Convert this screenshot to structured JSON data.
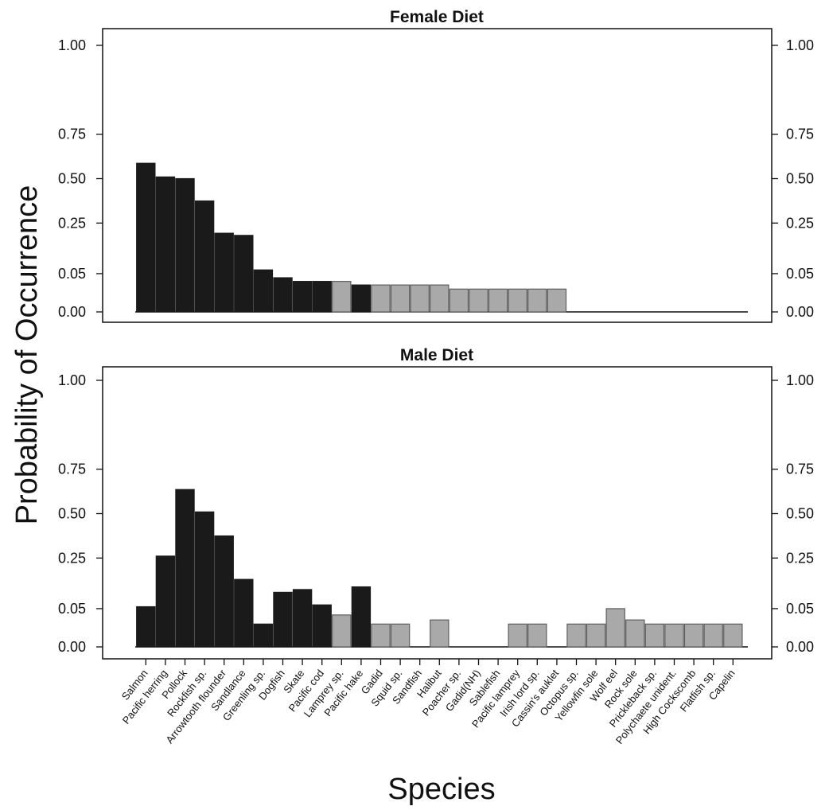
{
  "chart_data": [
    {
      "type": "bar",
      "title": "Female Diet",
      "ylabel": "Probability of Occurrence",
      "xlabel": "Species",
      "yticks": [
        "0.00",
        "0.05",
        "0.25",
        "0.50",
        "0.75",
        "1.00"
      ],
      "colors": {
        "dark": "#1a1a1a",
        "light": "#a9a9a9",
        "edge": "#5e5e5e"
      },
      "categories": [
        "Salmon",
        "Pacific herring",
        "Pollock",
        "Rockfish sp.",
        "Arrowtooth flounder",
        "Sandlance",
        "Greenling sp.",
        "Dogfish",
        "Skate",
        "Pacific cod",
        "Lamprey sp.",
        "Pacific hake",
        "Gadid",
        "Squid sp.",
        "Sandfish",
        "Halibut",
        "Poacher sp.",
        "Gadid(NH)",
        "Sablefish",
        "Pacific lamprey",
        "Irish lord sp.",
        "Cassin's auklet",
        "Octopus sp.",
        "Yellowfin sole",
        "Wolf eel",
        "Rock sole",
        "Prickleback sp.",
        "Polychaete unident.",
        "High Cockscomb",
        "Flatfish sp.",
        "Capelin"
      ],
      "values": [
        0.59,
        0.51,
        0.5,
        0.37,
        0.2,
        0.19,
        0.06,
        0.04,
        0.032,
        0.032,
        0.032,
        0.025,
        0.025,
        0.025,
        0.025,
        0.025,
        0.018,
        0.018,
        0.018,
        0.018,
        0.018,
        0.018,
        0,
        0,
        0,
        0,
        0,
        0,
        0,
        0,
        0
      ],
      "shade": [
        "dark",
        "dark",
        "dark",
        "dark",
        "dark",
        "dark",
        "dark",
        "dark",
        "dark",
        "dark",
        "light",
        "dark",
        "light",
        "light",
        "light",
        "light",
        "light",
        "light",
        "light",
        "light",
        "light",
        "light",
        "light",
        "light",
        "light",
        "light",
        "light",
        "light",
        "light",
        "light",
        "light"
      ]
    },
    {
      "type": "bar",
      "title": "Male Diet",
      "ylabel": "Probability of Occurrence",
      "xlabel": "Species",
      "yticks": [
        "0.00",
        "0.05",
        "0.25",
        "0.50",
        "0.75",
        "1.00"
      ],
      "colors": {
        "dark": "#1a1a1a",
        "light": "#a9a9a9",
        "edge": "#5e5e5e"
      },
      "categories": [
        "Salmon",
        "Pacific herring",
        "Pollock",
        "Rockfish sp.",
        "Arrowtooth flounder",
        "Sandlance",
        "Greenling sp.",
        "Dogfish",
        "Skate",
        "Pacific cod",
        "Lamprey sp.",
        "Pacific hake",
        "Gadid",
        "Squid sp.",
        "Sandfish",
        "Halibut",
        "Poacher sp.",
        "Gadid(NH)",
        "Sablefish",
        "Pacific lamprey",
        "Irish lord sp.",
        "Cassin's auklet",
        "Octopus sp.",
        "Yellowfin sole",
        "Wolf eel",
        "Rock sole",
        "Prickleback sp.",
        "Polychaete unident.",
        "High Cockscomb",
        "Flatfish sp.",
        "Capelin"
      ],
      "values": [
        0.055,
        0.26,
        0.64,
        0.51,
        0.37,
        0.15,
        0.018,
        0.1,
        0.11,
        0.06,
        0.035,
        0.12,
        0.018,
        0.018,
        0,
        0.025,
        0,
        0,
        0,
        0.018,
        0.018,
        0,
        0.018,
        0.018,
        0.05,
        0.025,
        0.018,
        0.018,
        0.018,
        0.018,
        0.018
      ],
      "shade": [
        "dark",
        "dark",
        "dark",
        "dark",
        "dark",
        "dark",
        "dark",
        "dark",
        "dark",
        "dark",
        "light",
        "dark",
        "light",
        "light",
        "light",
        "light",
        "light",
        "light",
        "light",
        "light",
        "light",
        "light",
        "light",
        "light",
        "light",
        "light",
        "light",
        "light",
        "light",
        "light",
        "light"
      ]
    }
  ]
}
